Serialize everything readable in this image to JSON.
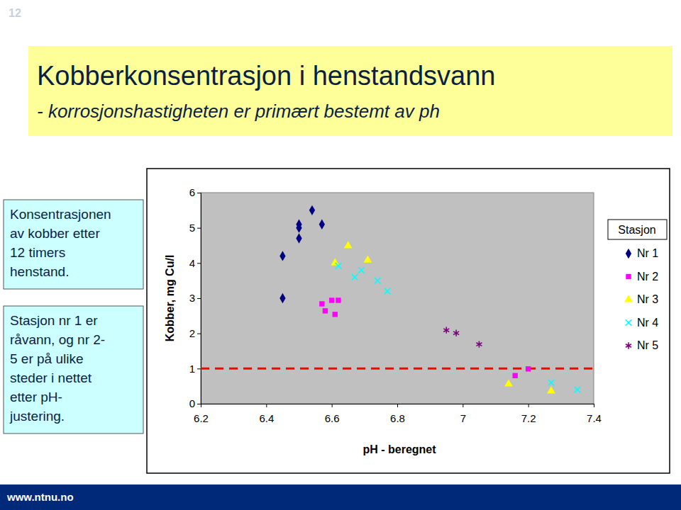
{
  "slide": {
    "page_number": "12",
    "footer": "www.ntnu.no"
  },
  "chart_data": {
    "type": "scatter",
    "title": "Kobberkonsentrasjon i henstandsvann",
    "subtitle": "- korrosjonshastigheten er primært bestemt av ph",
    "annotations": [
      [
        "Konsentrasjonen",
        "av kobber etter",
        "12 timers",
        "henstand."
      ],
      [
        "Stasjon nr 1 er",
        "råvann, og nr 2-",
        "5 er på ulike",
        "steder i nettet",
        "etter pH-",
        "justering."
      ]
    ],
    "x_label": "pH - beregnet",
    "y_label": "Kobber, mg Cu/l",
    "xlim": [
      6.2,
      7.4
    ],
    "xticks": [
      6.2,
      6.4,
      6.6,
      6.8,
      7,
      7.2,
      7.4
    ],
    "ylim": [
      0,
      6
    ],
    "yticks": [
      0,
      1,
      2,
      3,
      4,
      5,
      6
    ],
    "grid": false,
    "legend": "right",
    "legend_title": "Stasjon",
    "hline": 1,
    "series": [
      {
        "name": "Nr 1",
        "color": "#000080",
        "marker": "diamond",
        "x": [
          6.45,
          6.45,
          6.5,
          6.5,
          6.5,
          6.54,
          6.57
        ],
        "values": [
          3.0,
          4.2,
          4.7,
          5.0,
          5.1,
          5.5,
          5.1
        ]
      },
      {
        "name": "Nr 2",
        "color": "#ff00ff",
        "marker": "square",
        "x": [
          6.57,
          6.58,
          6.6,
          6.62,
          6.61,
          7.16,
          7.2
        ],
        "values": [
          2.84,
          2.64,
          2.94,
          2.94,
          2.54,
          0.8,
          0.99
        ]
      },
      {
        "name": "Nr 3",
        "color": "#ffff00",
        "marker": "triangle",
        "x": [
          6.61,
          6.65,
          6.71,
          7.14,
          7.27
        ],
        "values": [
          4.0,
          4.49,
          4.08,
          0.56,
          0.36
        ]
      },
      {
        "name": "Nr 4",
        "color": "#00ffff",
        "marker": "x",
        "x": [
          6.62,
          6.67,
          6.69,
          6.74,
          6.77,
          7.27,
          7.35
        ],
        "values": [
          3.92,
          3.6,
          3.8,
          3.5,
          3.2,
          0.6,
          0.4
        ]
      },
      {
        "name": "Nr 5",
        "color": "#800080",
        "marker": "asterisk",
        "x": [
          6.95,
          6.98,
          7.05
        ],
        "values": [
          2.09,
          2.01,
          1.69
        ]
      }
    ]
  }
}
